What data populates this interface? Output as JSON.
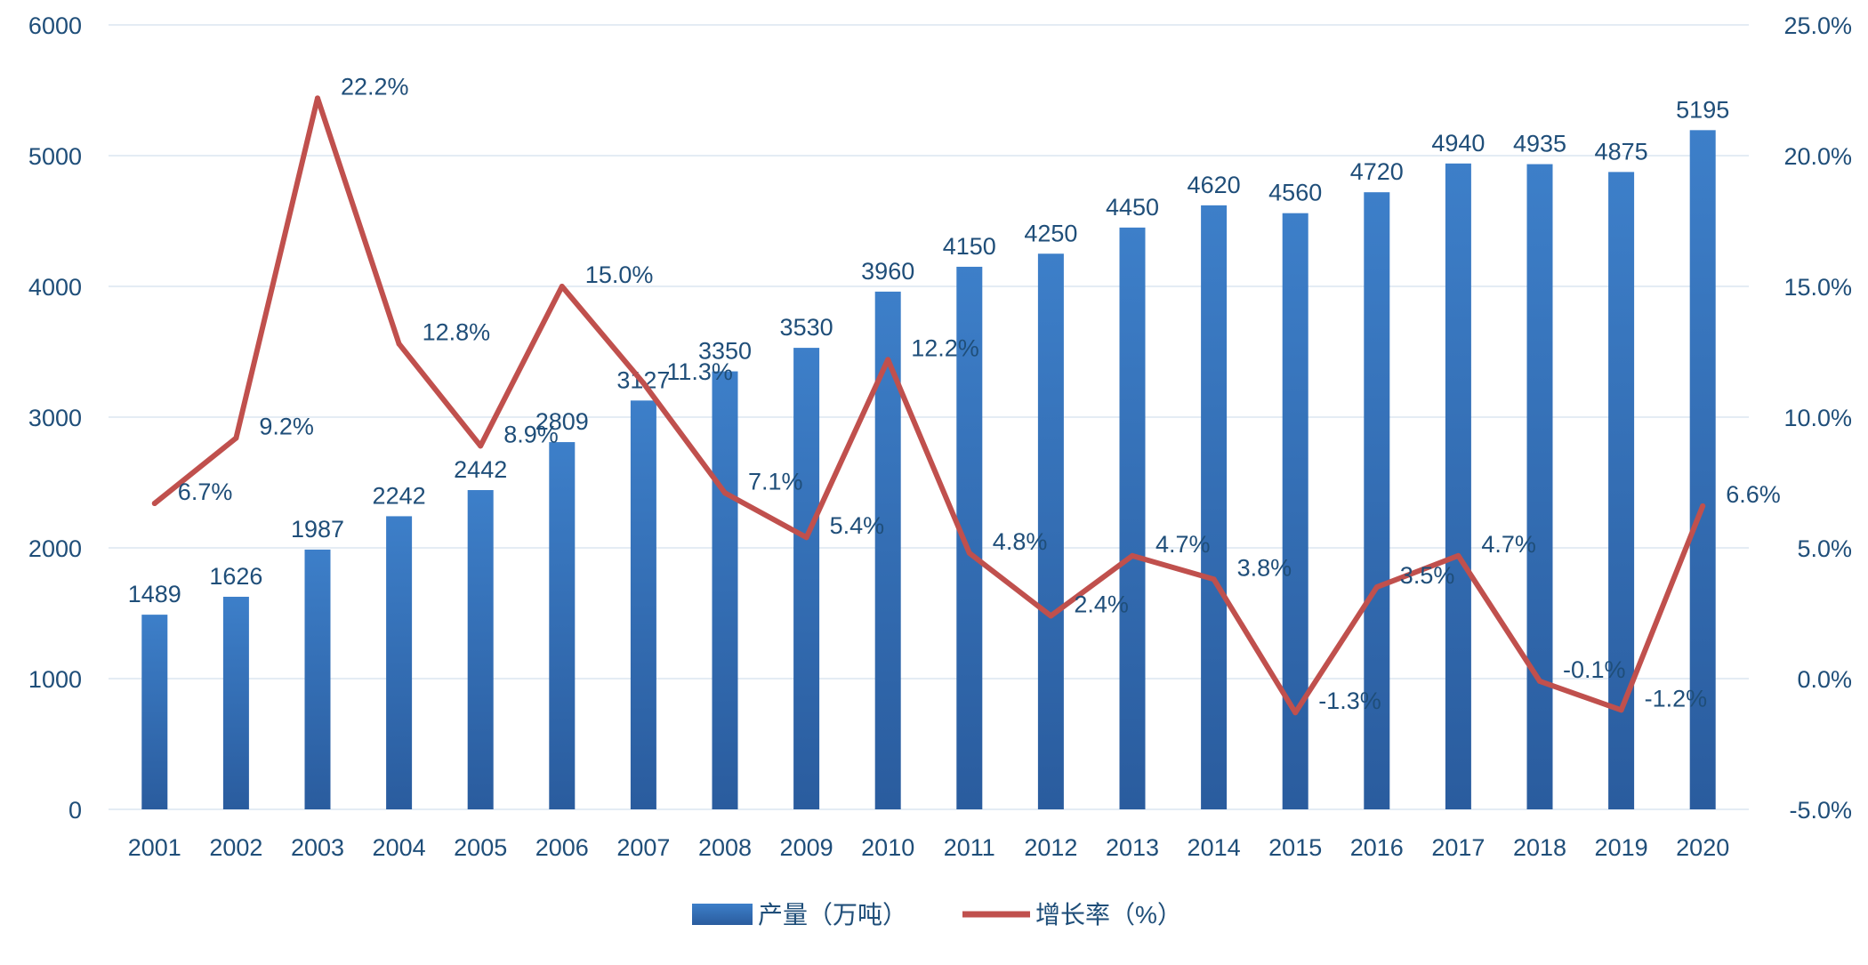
{
  "chart_data": {
    "type": "bar",
    "categories": [
      "2001",
      "2002",
      "2003",
      "2004",
      "2005",
      "2006",
      "2007",
      "2008",
      "2009",
      "2010",
      "2011",
      "2012",
      "2013",
      "2014",
      "2015",
      "2016",
      "2017",
      "2018",
      "2019",
      "2020"
    ],
    "series": [
      {
        "name": "产量（万吨）",
        "type": "bar",
        "axis": "left",
        "color": "#2e6db5",
        "values": [
          1489,
          1626,
          1987,
          2242,
          2442,
          2809,
          3127,
          3350,
          3530,
          3960,
          4150,
          4250,
          4450,
          4620,
          4560,
          4720,
          4940,
          4935,
          4875,
          5195
        ],
        "labels": [
          "1489",
          "1626",
          "1987",
          "2242",
          "2442",
          "2809",
          "3127",
          "3350",
          "3530",
          "3960",
          "4150",
          "4250",
          "4450",
          "4620",
          "4560",
          "4720",
          "4940",
          "4935",
          "4875",
          "5195"
        ]
      },
      {
        "name": "增长率（%）",
        "type": "line",
        "axis": "right",
        "color": "#c0504d",
        "values": [
          6.7,
          9.2,
          22.2,
          12.8,
          8.9,
          15.0,
          11.3,
          7.1,
          5.4,
          12.2,
          4.8,
          2.4,
          4.7,
          3.8,
          -1.3,
          3.5,
          4.7,
          -0.1,
          -1.2,
          6.6
        ],
        "labels": [
          "6.7%",
          "9.2%",
          "22.2%",
          "12.8%",
          "8.9%",
          "15.0%",
          "11.3%",
          "7.1%",
          "5.4%",
          "12.2%",
          "4.8%",
          "2.4%",
          "4.7%",
          "3.8%",
          "-1.3%",
          "3.5%",
          "4.7%",
          "-0.1%",
          "-1.2%",
          "6.6%"
        ]
      }
    ],
    "y_left": {
      "min": 0,
      "max": 6000,
      "ticks": [
        "0",
        "1000",
        "2000",
        "3000",
        "4000",
        "5000",
        "6000"
      ]
    },
    "y_right": {
      "min": -5,
      "max": 25,
      "ticks": [
        "-5.0%",
        "0.0%",
        "5.0%",
        "10.0%",
        "15.0%",
        "20.0%",
        "25.0%"
      ]
    },
    "grid": true,
    "legend_position": "bottom-center"
  }
}
